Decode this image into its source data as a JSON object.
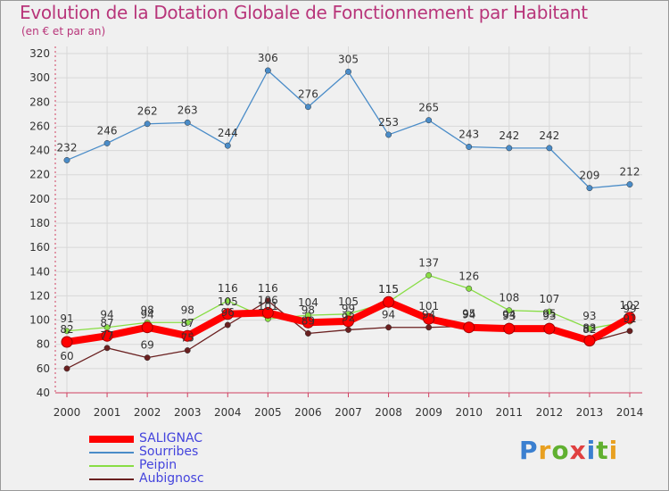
{
  "title": "Evolution de la Dotation Globale de Fonctionnement par Habitant",
  "subtitle": "(en € et par an)",
  "logo_text": "Proxiti",
  "colors": {
    "background": "#f0f0f0",
    "title": "#b8357a",
    "axis": "#d04060",
    "grid": "#d8d8d8",
    "legend_text": "#4444dd"
  },
  "chart_data": {
    "type": "line",
    "ylim": [
      40,
      320
    ],
    "yticks": [
      40,
      60,
      80,
      100,
      120,
      140,
      160,
      180,
      200,
      220,
      240,
      260,
      280,
      300,
      320
    ],
    "categories": [
      "2000",
      "2001",
      "2002",
      "2003",
      "2004",
      "2005",
      "2006",
      "2007",
      "2008",
      "2009",
      "2010",
      "2011",
      "2012",
      "2013",
      "2014"
    ],
    "grid": true,
    "legend_position": "bottom-left",
    "series": [
      {
        "name": "SALIGNAC",
        "color": "#ff0000",
        "values": [
          82,
          87,
          94,
          87,
          105,
          106,
          98,
          99,
          115,
          101,
          94,
          93,
          93,
          83,
          102
        ]
      },
      {
        "name": "Sourribes",
        "color": "#4a8cc8",
        "values": [
          232,
          246,
          262,
          263,
          244,
          306,
          276,
          305,
          253,
          265,
          243,
          242,
          242,
          209,
          212
        ]
      },
      {
        "name": "Peipin",
        "color": "#88dd44",
        "values": [
          91,
          94,
          98,
          98,
          116,
          101,
          104,
          105,
          115,
          137,
          126,
          108,
          107,
          93,
          99
        ]
      },
      {
        "name": "Aubignosc",
        "color": "#6a2020",
        "values": [
          60,
          77,
          69,
          75,
          96,
          116,
          89,
          92,
          94,
          94,
          95,
          94,
          95,
          82,
          91
        ]
      }
    ]
  }
}
